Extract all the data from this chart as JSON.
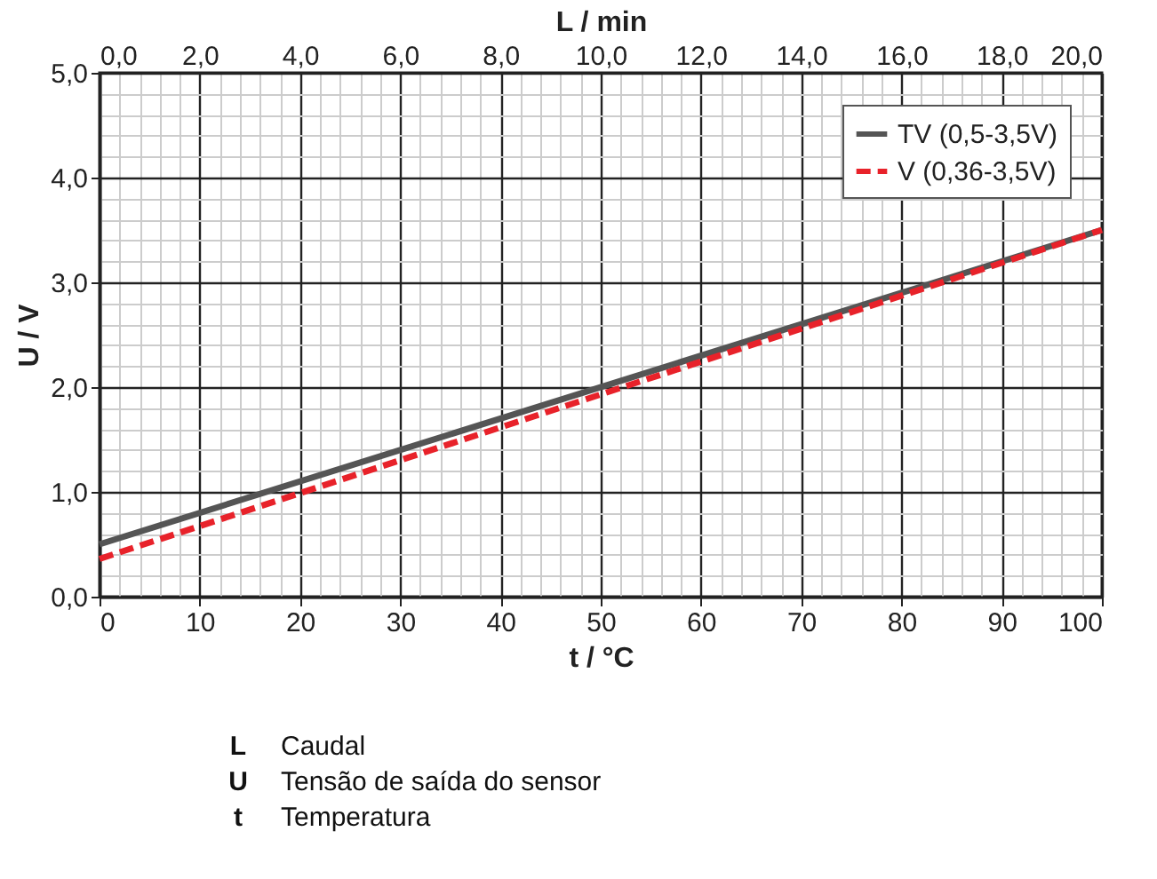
{
  "chart_data": {
    "type": "line",
    "xlabel": "t  /  °C",
    "ylabel": "U / V",
    "x2label": "L / min",
    "x": [
      0,
      100
    ],
    "series": [
      {
        "name": "TV (0,5-3,5V)",
        "color": "#555555",
        "line_style": "solid",
        "values": [
          0.5,
          3.5
        ]
      },
      {
        "name": "V (0,36-3,5V)",
        "color": "#e8222a",
        "line_style": "dashed",
        "values": [
          0.36,
          3.5
        ]
      }
    ],
    "xlim": [
      0,
      100
    ],
    "xticks": [
      0,
      10,
      20,
      30,
      40,
      50,
      60,
      70,
      80,
      90,
      100
    ],
    "x2lim": [
      0,
      20
    ],
    "x2ticks": [
      {
        "value": 0,
        "label": "0,0"
      },
      {
        "value": 2,
        "label": "2,0"
      },
      {
        "value": 4,
        "label": "4,0"
      },
      {
        "value": 6,
        "label": "6,0"
      },
      {
        "value": 8,
        "label": "8,0"
      },
      {
        "value": 10,
        "label": "10,0"
      },
      {
        "value": 12,
        "label": "12,0"
      },
      {
        "value": 14,
        "label": "14,0"
      },
      {
        "value": 16,
        "label": "16,0"
      },
      {
        "value": 18,
        "label": "18,0"
      },
      {
        "value": 20,
        "label": "20,0"
      }
    ],
    "ylim": [
      0,
      5
    ],
    "yticks": [
      {
        "value": 0,
        "label": "0,0"
      },
      {
        "value": 1,
        "label": "1,0"
      },
      {
        "value": 2,
        "label": "2,0"
      },
      {
        "value": 3,
        "label": "3,0"
      },
      {
        "value": 4,
        "label": "4,0"
      },
      {
        "value": 5,
        "label": "5,0"
      }
    ],
    "grid": true,
    "legend": "top right",
    "annotations": [
      "L Caudal",
      "U Tensão de saída do sensor",
      "t Temperatura"
    ]
  }
}
